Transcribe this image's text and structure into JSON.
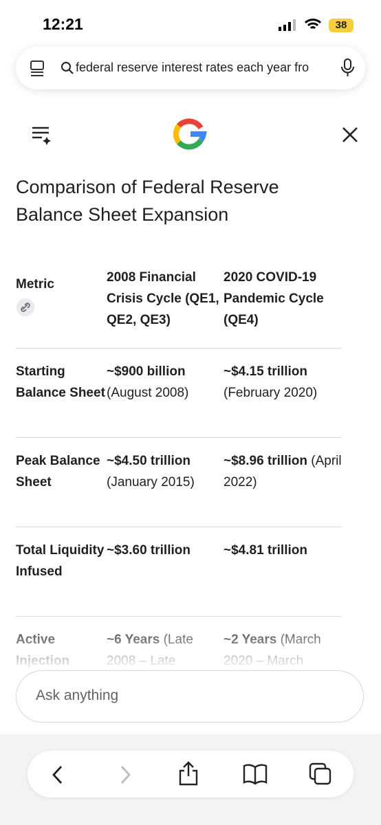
{
  "status_bar": {
    "time": "12:21",
    "battery": "38"
  },
  "search_bar": {
    "query": "federal reserve interest rates each year fro"
  },
  "title": "Comparison of Federal Reserve Balance Sheet Expansion",
  "table": {
    "headers": [
      "Metric",
      "2008 Financial Crisis Cycle (QE1, QE2, QE3)",
      "2020 COVID-19 Pandemic Cycle (QE4)"
    ],
    "rows": [
      {
        "metric": "Starting Balance Sheet",
        "cells": [
          {
            "value": "~$900 billion",
            "note": "(August 2008)"
          },
          {
            "value": "~$4.15 trillion",
            "note": "(February 2020)"
          }
        ]
      },
      {
        "metric": "Peak Balance Sheet",
        "cells": [
          {
            "value": "~$4.50 trillion",
            "note": "(January 2015)"
          },
          {
            "value": "~$8.96 trillion",
            "note": "(April 2022)"
          }
        ]
      },
      {
        "metric": "Total Liquidity Infused",
        "cells": [
          {
            "value": "~$3.60 trillion"
          },
          {
            "value": "~$4.81 trillion"
          }
        ]
      },
      {
        "metric": "Active Injection",
        "cells": [
          {
            "value": "~6 Years",
            "note": "(Late 2008 – Late"
          },
          {
            "value": "~2 Years",
            "note": "(March 2020 – March"
          }
        ]
      }
    ]
  },
  "ask_bar": {
    "placeholder": "Ask anything"
  }
}
